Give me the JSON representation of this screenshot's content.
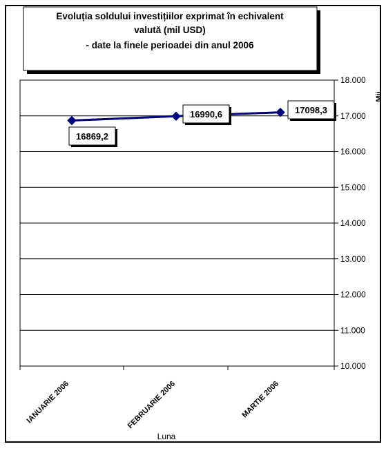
{
  "chart_data": {
    "type": "line",
    "title_lines": [
      "Evoluția soldului investițiilor exprimat în echivalent",
      "valută (mil USD)",
      "- date la finele perioadei din anul 2006"
    ],
    "categories": [
      "IANUARIE 2006",
      "FEBRUARIE 2006",
      "MARTIE 2006"
    ],
    "series": [
      {
        "values": [
          16869.2,
          16990.6,
          17098.3
        ],
        "color": "#00007f"
      }
    ],
    "data_labels": [
      "16869,2",
      "16990,6",
      "17098,3"
    ],
    "ylim": [
      10000,
      18000
    ],
    "ytick_values": [
      10000,
      11000,
      12000,
      13000,
      14000,
      15000,
      16000,
      17000,
      18000
    ],
    "ytick_labels": [
      "10.000",
      "11.000",
      "12.000",
      "13.000",
      "14.000",
      "15.000",
      "16.000",
      "17.000",
      "18.000"
    ],
    "xlabel": "Luna",
    "ylabel": "Mii",
    "y_axis_side": "right",
    "grid": true,
    "legend": false
  }
}
